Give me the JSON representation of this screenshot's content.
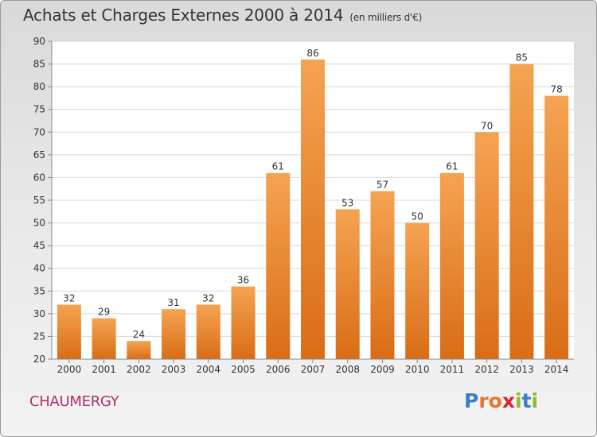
{
  "header": {
    "title": "Achats et Charges Externes 2000 à 2014",
    "unit": "(en milliers d'€)"
  },
  "commune": "CHAUMERGY",
  "logo": {
    "text": "Proxiti",
    "letters": [
      {
        "ch": "P",
        "color": "#3a7fc4"
      },
      {
        "ch": "r",
        "color": "#e8742a"
      },
      {
        "ch": "o",
        "color": "#e8742a"
      },
      {
        "ch": "x",
        "color": "#d8262f"
      },
      {
        "ch": "i",
        "color": "#8bbb35"
      },
      {
        "ch": "t",
        "color": "#3a7fc4"
      },
      {
        "ch": "i",
        "color": "#8bbb35"
      }
    ]
  },
  "chart_data": {
    "type": "bar",
    "categories": [
      "2000",
      "2001",
      "2002",
      "2003",
      "2004",
      "2005",
      "2006",
      "2007",
      "2008",
      "2009",
      "2010",
      "2011",
      "2012",
      "2013",
      "2014"
    ],
    "values": [
      32,
      29,
      24,
      31,
      32,
      36,
      61,
      86,
      53,
      57,
      50,
      61,
      70,
      85,
      78
    ],
    "ylim": [
      20,
      90
    ],
    "yticks": [
      20,
      25,
      30,
      35,
      40,
      45,
      50,
      55,
      60,
      65,
      70,
      75,
      80,
      85,
      90
    ],
    "grid": true,
    "bar_color": "#e8892f",
    "data_labels": true
  }
}
